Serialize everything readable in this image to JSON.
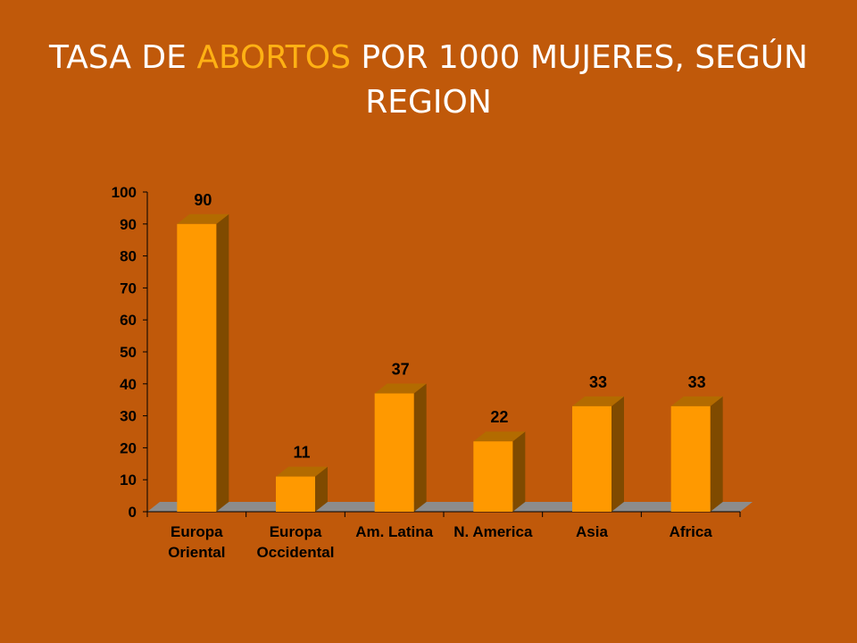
{
  "slide": {
    "title_before": "TASA DE ",
    "title_highlight": "ABORTOS",
    "title_after": " POR 1000 MUJERES, SEGÚN REGION"
  },
  "colors": {
    "background": "#c0590a",
    "title_text": "#ffffff",
    "title_highlight": "#ffb114",
    "bar_front": "#ff9900",
    "bar_side": "#7f4a00",
    "bar_top": "#b36b00",
    "floor": "#8c8c8c",
    "axis": "#000000"
  },
  "chart_data": {
    "type": "bar",
    "style": "3d-column",
    "categories": [
      [
        "Europa",
        "Oriental"
      ],
      [
        "Europa",
        "Occidental"
      ],
      [
        "Am. Latina"
      ],
      [
        "N. America"
      ],
      [
        "Asia"
      ],
      [
        "Africa"
      ]
    ],
    "values": [
      90,
      11,
      37,
      22,
      33,
      33
    ],
    "data_labels": [
      "90",
      "11",
      "37",
      "22",
      "33",
      "33"
    ],
    "ylim": [
      0,
      100
    ],
    "yticks": [
      0,
      10,
      20,
      30,
      40,
      50,
      60,
      70,
      80,
      90,
      100
    ],
    "grid": false,
    "legend": "none"
  }
}
